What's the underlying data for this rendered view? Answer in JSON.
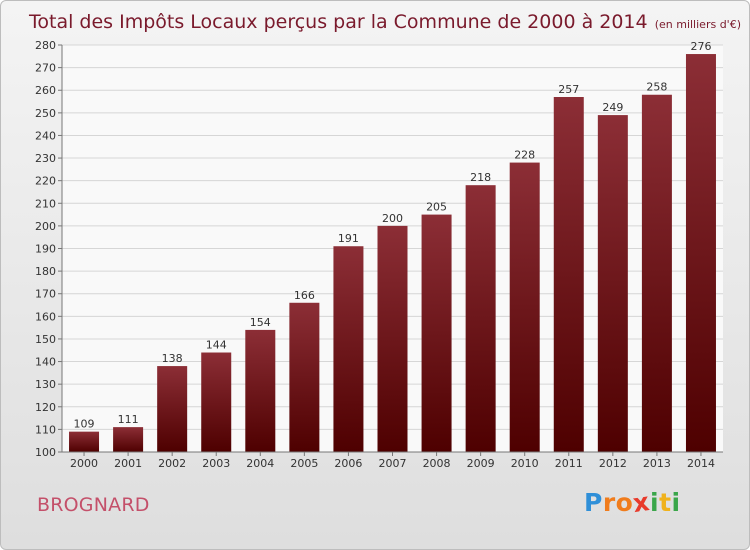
{
  "chart_data": {
    "type": "bar",
    "title": "Total des Impôts Locaux perçus par la Commune de 2000 à 2014",
    "unit_note": "(en milliers d'€)",
    "categories": [
      "2000",
      "2001",
      "2002",
      "2003",
      "2004",
      "2005",
      "2006",
      "2007",
      "2008",
      "2009",
      "2010",
      "2011",
      "2012",
      "2013",
      "2014"
    ],
    "values": [
      109,
      111,
      138,
      144,
      154,
      166,
      191,
      200,
      205,
      218,
      228,
      257,
      249,
      258,
      276
    ],
    "ylim": [
      100,
      280
    ],
    "yticks": [
      100,
      110,
      120,
      130,
      140,
      150,
      160,
      170,
      180,
      190,
      200,
      210,
      220,
      230,
      240,
      250,
      260,
      270,
      280
    ],
    "grid": true,
    "bar_color": "#7a1a22",
    "data_labels": true
  },
  "commune": "BROGNARD",
  "logo": {
    "text": "Proxiti",
    "letters": [
      "P",
      "r",
      "o",
      "x",
      "i",
      "t",
      "i"
    ],
    "colors": [
      "#2f8fd8",
      "#f07c1c",
      "#f07c1c",
      "#e83a2b",
      "#3aa64a",
      "#f0b21c",
      "#3aa64a"
    ]
  }
}
